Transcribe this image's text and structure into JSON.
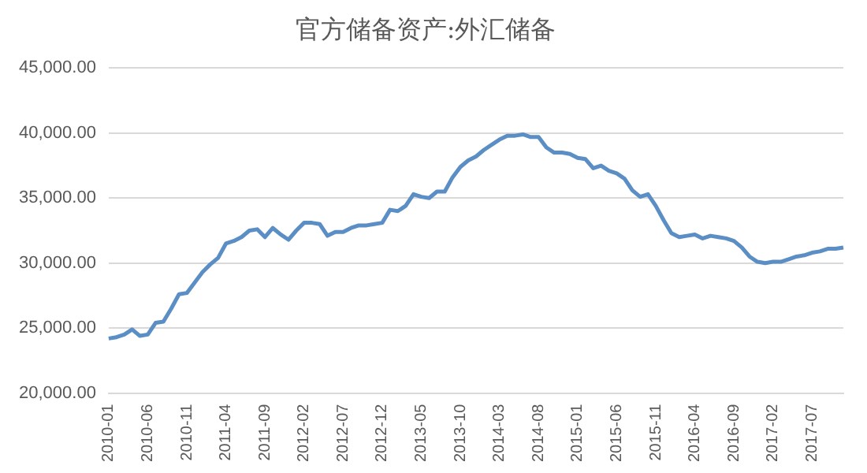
{
  "chart_data": {
    "type": "line",
    "title": "官方储备资产:外汇储备",
    "categories": [
      "2010-01",
      null,
      null,
      null,
      null,
      "2010-06",
      null,
      null,
      null,
      null,
      "2010-11",
      null,
      null,
      null,
      null,
      "2011-04",
      null,
      null,
      null,
      null,
      "2011-09",
      null,
      null,
      null,
      null,
      "2012-02",
      null,
      null,
      null,
      null,
      "2012-07",
      null,
      null,
      null,
      null,
      "2012-12",
      null,
      null,
      null,
      null,
      "2013-05",
      null,
      null,
      null,
      null,
      "2013-10",
      null,
      null,
      null,
      null,
      "2014-03",
      null,
      null,
      null,
      null,
      "2014-08",
      null,
      null,
      null,
      null,
      "2015-01",
      null,
      null,
      null,
      null,
      "2015-06",
      null,
      null,
      null,
      null,
      "2015-11",
      null,
      null,
      null,
      null,
      "2016-04",
      null,
      null,
      null,
      null,
      "2016-09",
      null,
      null,
      null,
      null,
      "2017-02",
      null,
      null,
      null,
      null,
      "2017-07",
      null,
      null,
      null,
      null
    ],
    "series": [
      {
        "color": "#5b8ec4",
        "values": [
          24200,
          24300,
          24500,
          24900,
          24400,
          24500,
          25400,
          25500,
          26500,
          27600,
          27700,
          28500,
          29300,
          29900,
          30400,
          31500,
          31700,
          32000,
          32500,
          32600,
          32000,
          32700,
          32200,
          31800,
          32500,
          33100,
          33100,
          33000,
          32100,
          32400,
          32400,
          32700,
          32900,
          32900,
          33000,
          33100,
          34100,
          34000,
          34400,
          35300,
          35100,
          35000,
          35500,
          35500,
          36600,
          37400,
          37900,
          38200,
          38700,
          39100,
          39500,
          39800,
          39800,
          39900,
          39700,
          39700,
          38900,
          38500,
          38500,
          38400,
          38100,
          38000,
          37300,
          37500,
          37100,
          36900,
          36500,
          35600,
          35100,
          35300,
          34400,
          33300,
          32300,
          32000,
          32100,
          32200,
          31900,
          32100,
          32000,
          31900,
          31700,
          31200,
          30500,
          30100,
          30000,
          30100,
          30100,
          30300,
          30500,
          30600,
          30800,
          30900,
          31100,
          31100,
          31200
        ]
      }
    ],
    "ylim": [
      20000,
      45000
    ],
    "yticks": [
      {
        "value": 20000,
        "label": "20,000.00"
      },
      {
        "value": 25000,
        "label": "25,000.00"
      },
      {
        "value": 30000,
        "label": "30,000.00"
      },
      {
        "value": 35000,
        "label": "35,000.00"
      },
      {
        "value": 40000,
        "label": "40,000.00"
      },
      {
        "value": 45000,
        "label": "45,000.00"
      }
    ],
    "grid": "y",
    "legend": false,
    "marker": "none",
    "line_style": "solid"
  }
}
